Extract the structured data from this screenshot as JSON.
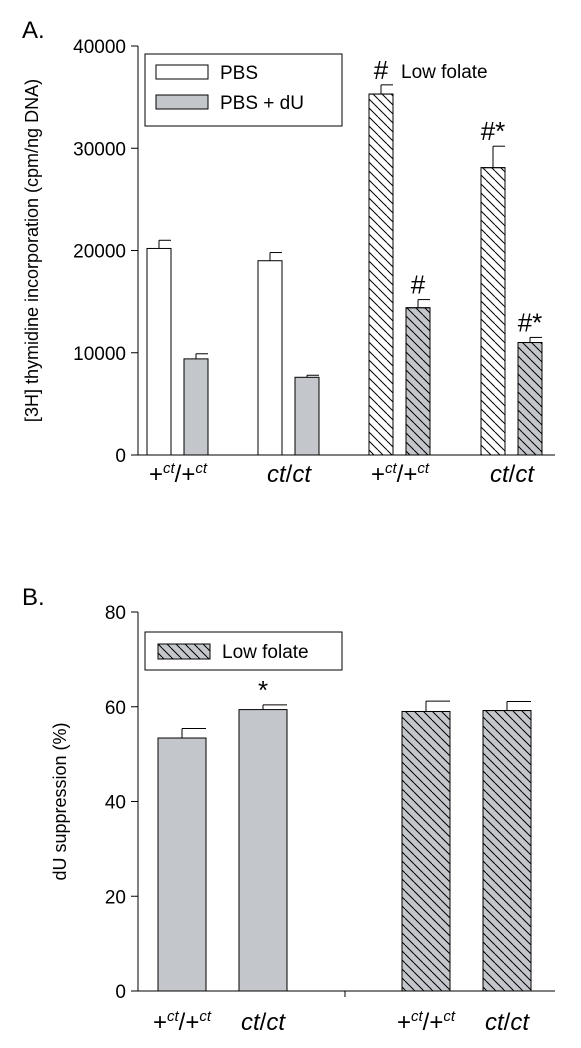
{
  "chart_data": [
    {
      "type": "bar",
      "panel_label": "A.",
      "ylabel": "[3H] thymidine incorporation (cpm/ng DNA)",
      "categories": [
        "+ct/+ct",
        "ct/ct",
        "+ct/+ct",
        "ct/ct"
      ],
      "series": [
        {
          "name": "PBS",
          "color": "#ffffff",
          "values": [
            20200,
            19000,
            35300,
            28100
          ],
          "errors": [
            800,
            800,
            900,
            2100
          ],
          "annotations": [
            null,
            null,
            "#",
            "#*"
          ]
        },
        {
          "name": "PBS + dU",
          "color": "#c3c6ca",
          "values": [
            9400,
            7600,
            14400,
            11000
          ],
          "errors": [
            500,
            200,
            800,
            500
          ],
          "annotations": [
            null,
            null,
            "#",
            "#*"
          ]
        }
      ],
      "hatch": [
        false,
        false,
        true,
        true
      ],
      "note": "Low folate",
      "ylim": [
        0,
        40000
      ],
      "yticks": [
        0,
        10000,
        20000,
        30000,
        40000
      ]
    },
    {
      "type": "bar",
      "panel_label": "B.",
      "ylabel": "dU suppression (%)",
      "categories": [
        "+ct/+ct",
        "ct/ct",
        "+ct/+ct",
        "ct/ct"
      ],
      "values": [
        53.4,
        59.4,
        59.0,
        59.2
      ],
      "errors": [
        2.0,
        1.0,
        2.2,
        1.9
      ],
      "annotations": [
        null,
        "*",
        null,
        null
      ],
      "color": "#c3c6ca",
      "hatch": [
        false,
        false,
        true,
        true
      ],
      "legend": "Low folate",
      "ylim": [
        0,
        80
      ],
      "yticks": [
        0,
        20,
        40,
        60,
        80
      ]
    }
  ]
}
